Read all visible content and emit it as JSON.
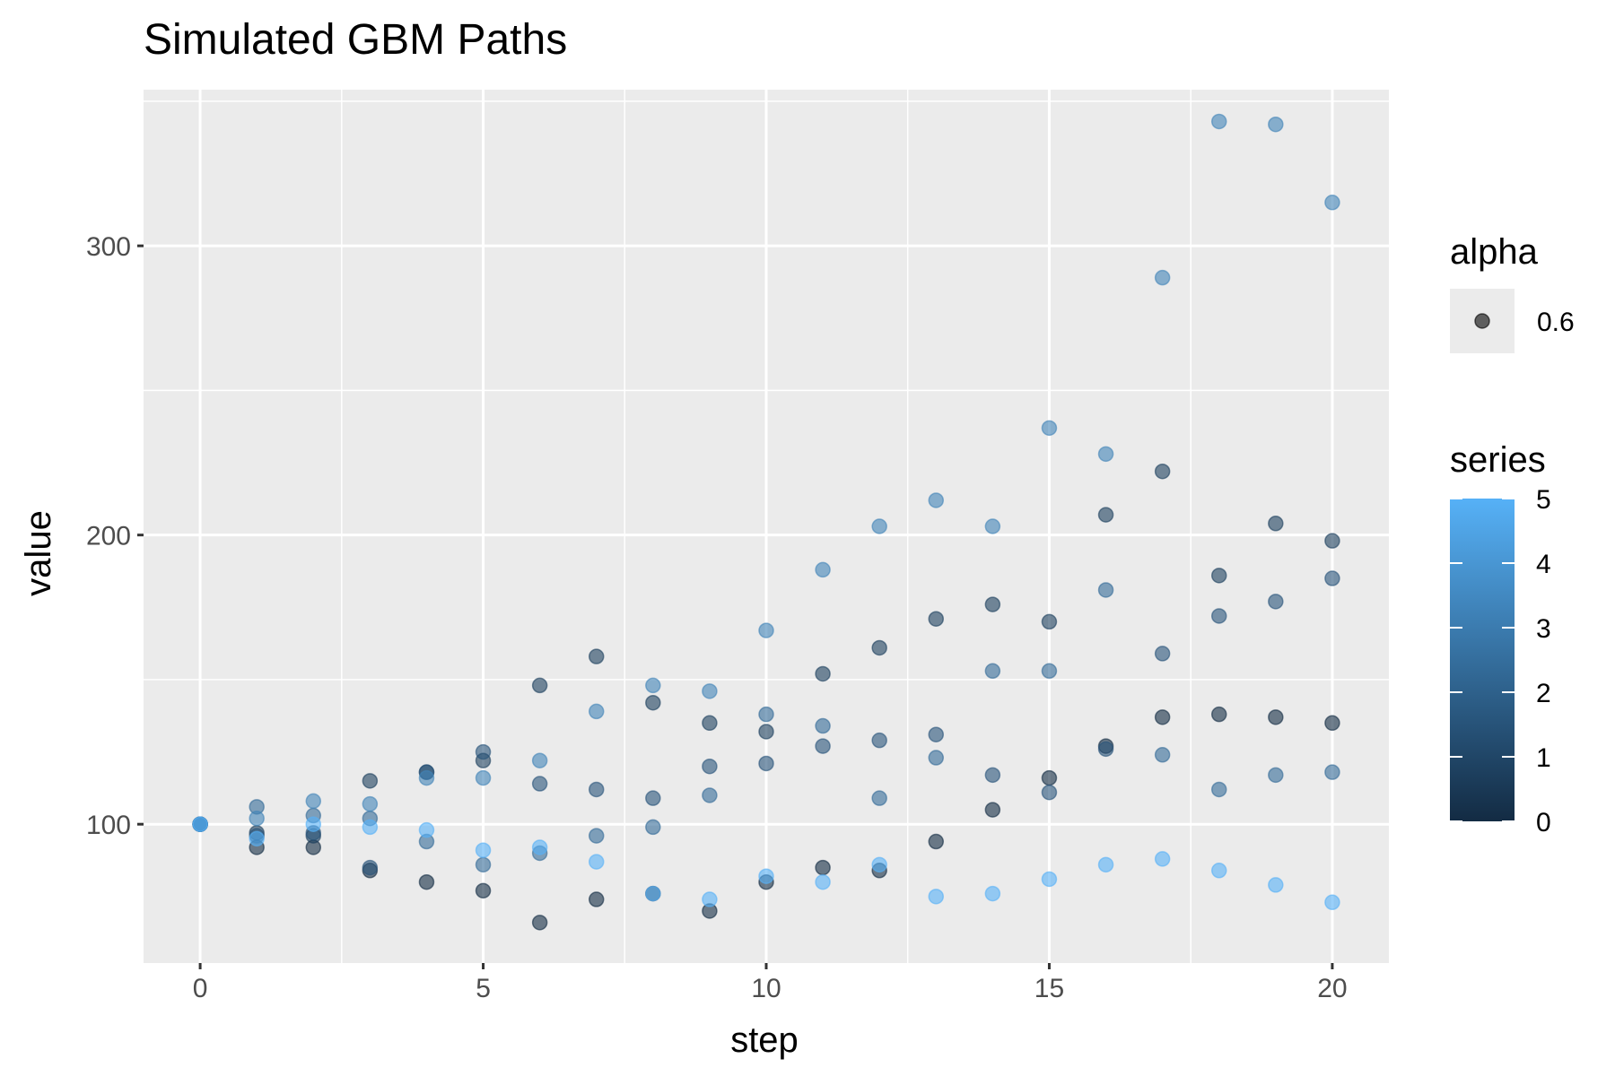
{
  "chart_data": {
    "type": "scatter",
    "title": "Simulated GBM Paths",
    "xlabel": "step",
    "ylabel": "value",
    "xlim": [
      -1,
      21
    ],
    "ylim": [
      52,
      354
    ],
    "x_ticks": [
      0,
      5,
      10,
      15,
      20
    ],
    "x_tick_labels": [
      "0",
      "5",
      "10",
      "15",
      "20"
    ],
    "y_ticks": [
      100,
      200,
      300
    ],
    "y_tick_labels": [
      "100",
      "200",
      "300"
    ],
    "grid": true,
    "background": "#ebebeb",
    "point_alpha": 0.6,
    "series": [
      {
        "name": "0",
        "color": "#132b43",
        "x": [
          0,
          1,
          2,
          3,
          4,
          5,
          6,
          7,
          8,
          9,
          10,
          11,
          12,
          13,
          14,
          15,
          16,
          17,
          18,
          19,
          20
        ],
        "y": [
          100,
          92,
          92,
          84,
          80,
          77,
          66,
          74,
          76,
          70,
          80,
          85,
          84,
          94,
          105,
          116,
          127,
          137,
          138,
          137,
          135
        ]
      },
      {
        "name": "1",
        "color": "#1d3f5e",
        "x": [
          0,
          1,
          2,
          3,
          4,
          5,
          6,
          7,
          8,
          9,
          10,
          11,
          12,
          13,
          14,
          15,
          16,
          17,
          18,
          19,
          20
        ],
        "y": [
          100,
          97,
          96,
          115,
          118,
          122,
          148,
          158,
          142,
          135,
          132,
          152,
          161,
          171,
          176,
          170,
          207,
          222,
          186,
          204,
          198
        ]
      },
      {
        "name": "2",
        "color": "#285479",
        "x": [
          0,
          1,
          2,
          3,
          4,
          5,
          6,
          7,
          8,
          9,
          10,
          11,
          12,
          13,
          14,
          15,
          16,
          17,
          18,
          19,
          20
        ],
        "y": [
          100,
          96,
          97,
          85,
          118,
          125,
          114,
          112,
          109,
          120,
          121,
          127,
          129,
          131,
          117,
          111,
          126,
          159,
          172,
          177,
          185
        ]
      },
      {
        "name": "3",
        "color": "#346b98",
        "x": [
          0,
          1,
          2,
          3,
          4,
          5,
          6,
          7,
          8,
          9,
          10,
          11,
          12,
          13,
          14,
          15,
          16,
          17,
          18,
          19,
          20
        ],
        "y": [
          100,
          106,
          103,
          102,
          94,
          86,
          90,
          96,
          99,
          110,
          138,
          134,
          109,
          123,
          153,
          153,
          181,
          124,
          112,
          117,
          118
        ]
      },
      {
        "name": "4",
        "color": "#4183b8",
        "x": [
          0,
          1,
          2,
          3,
          4,
          5,
          6,
          7,
          8,
          9,
          10,
          11,
          12,
          13,
          14,
          15,
          16,
          17,
          18,
          19,
          20
        ],
        "y": [
          100,
          102,
          108,
          107,
          116,
          116,
          122,
          139,
          148,
          146,
          167,
          188,
          203,
          212,
          203,
          237,
          228,
          289,
          343,
          342,
          315
        ]
      },
      {
        "name": "5",
        "color": "#56b1f7",
        "x": [
          0,
          1,
          2,
          3,
          4,
          5,
          6,
          7,
          8,
          9,
          10,
          11,
          12,
          13,
          14,
          15,
          16,
          17,
          18,
          19,
          20
        ],
        "y": [
          100,
          95,
          100,
          99,
          98,
          91,
          92,
          87,
          76,
          74,
          82,
          80,
          86,
          75,
          76,
          81,
          86,
          88,
          84,
          79,
          73
        ]
      }
    ],
    "legend": {
      "alpha_title": "alpha",
      "alpha_value": "0.6",
      "series_title": "series",
      "series_range": [
        0,
        5
      ],
      "series_ticks": [
        "0",
        "1",
        "2",
        "3",
        "4",
        "5"
      ],
      "gradient_low": "#132b43",
      "gradient_high": "#56b1f7",
      "placement": "right"
    }
  }
}
